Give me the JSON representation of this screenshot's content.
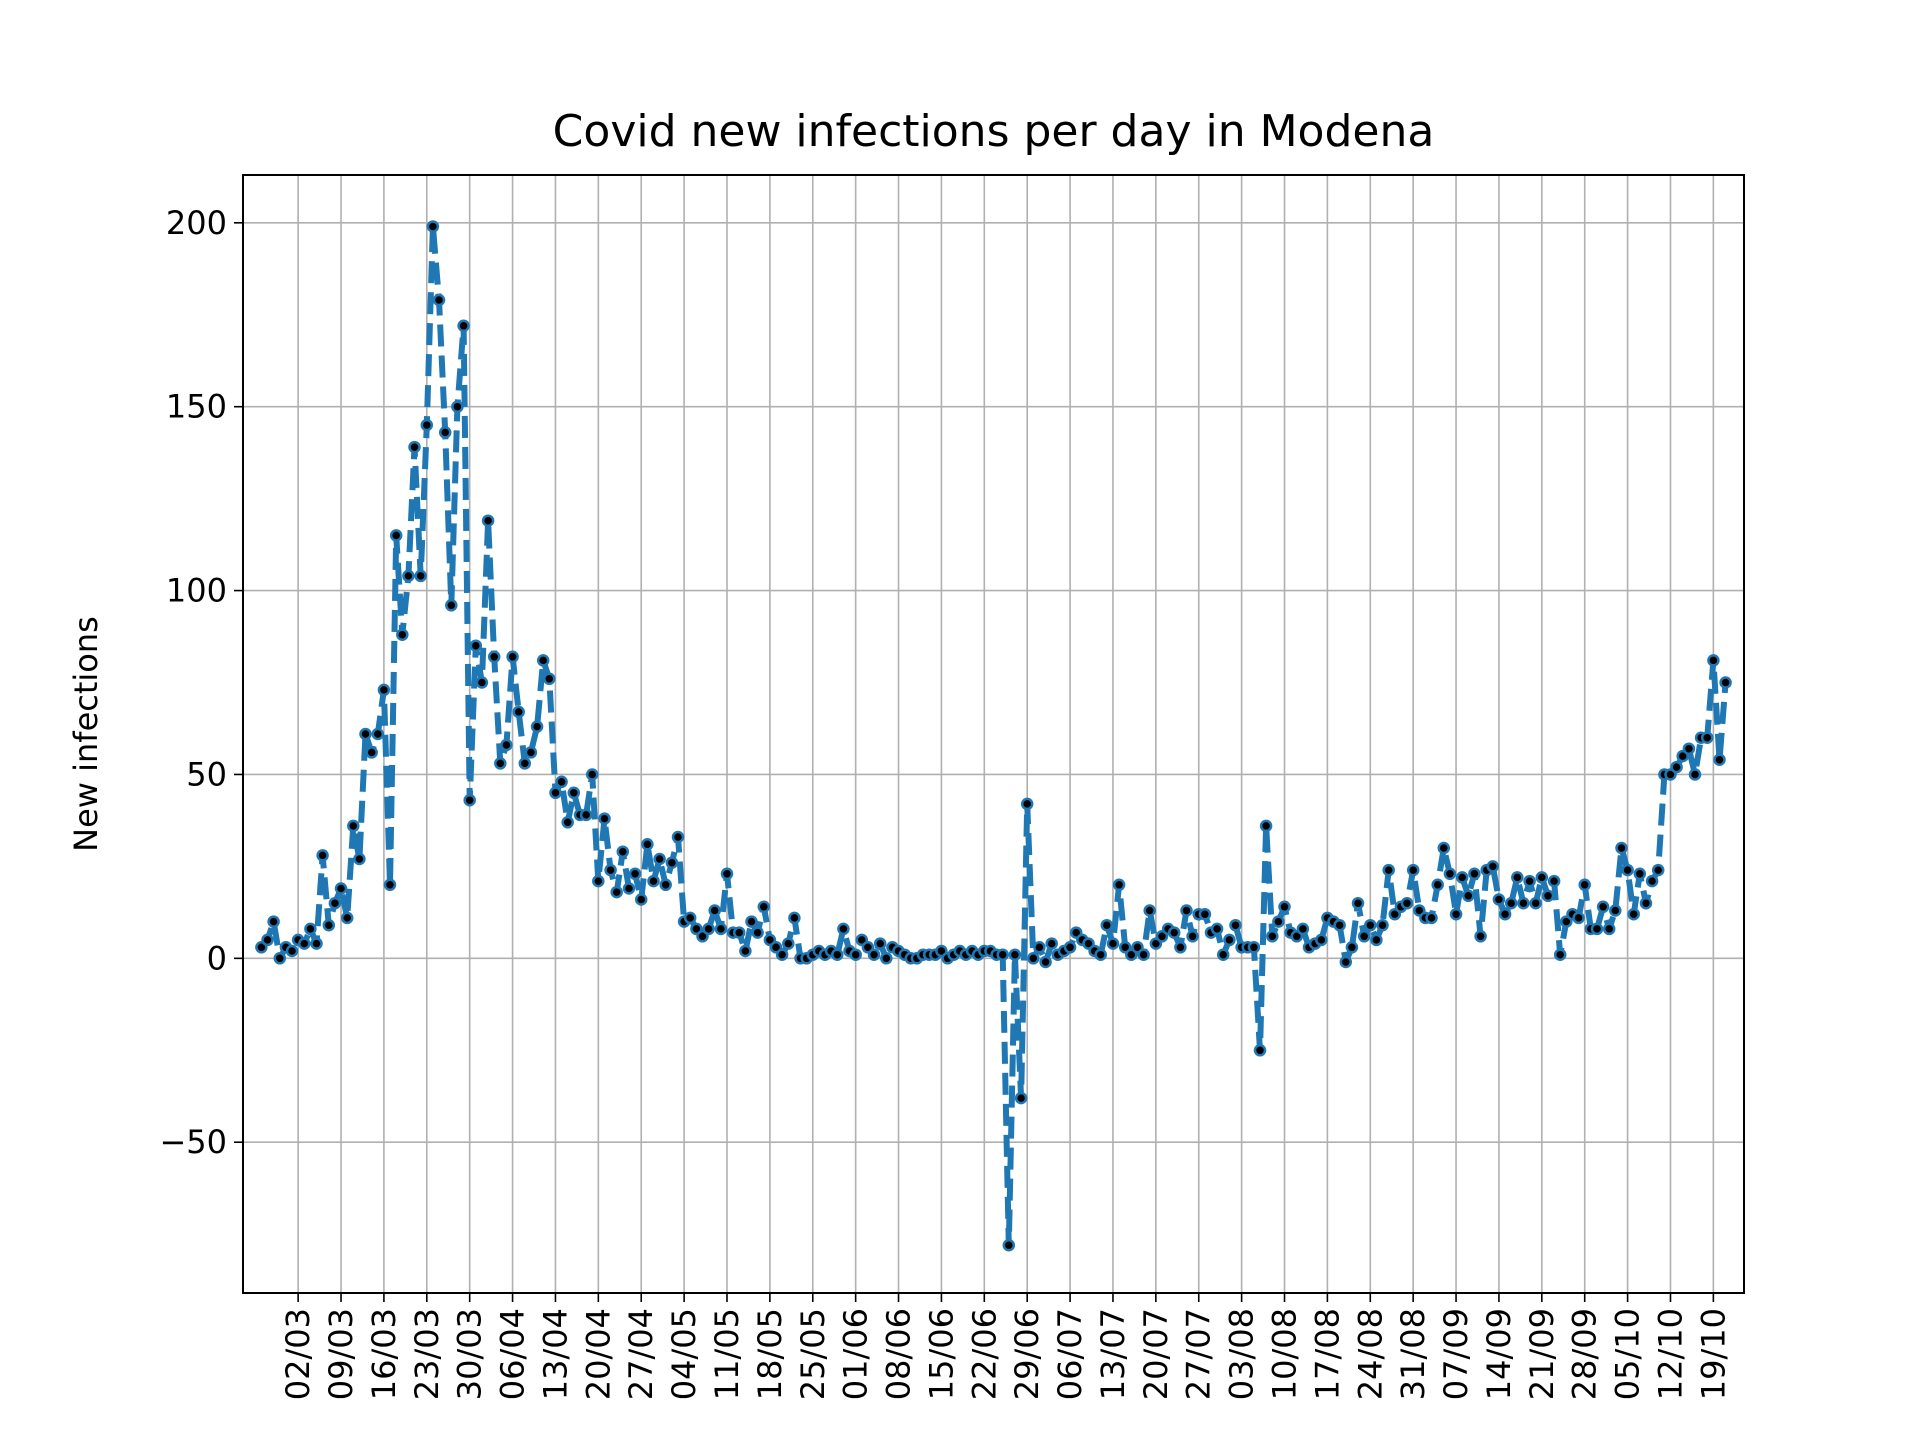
{
  "chart_data": {
    "type": "line",
    "title": "Covid new infections per day in Modena",
    "xlabel": "",
    "ylabel": "New infections",
    "x_start": "2020-02-25",
    "x_tick_labels": [
      "02/03",
      "09/03",
      "16/03",
      "23/03",
      "30/03",
      "06/04",
      "13/04",
      "20/04",
      "27/04",
      "04/05",
      "11/05",
      "18/05",
      "25/05",
      "01/06",
      "08/06",
      "15/06",
      "22/06",
      "29/06",
      "06/07",
      "13/07",
      "20/07",
      "27/07",
      "03/08",
      "10/08",
      "17/08",
      "24/08",
      "31/08",
      "07/09",
      "14/09",
      "21/09",
      "28/09",
      "05/10",
      "12/10",
      "19/10"
    ],
    "y_ticks": [
      -50,
      0,
      50,
      100,
      150,
      200
    ],
    "y_tick_labels": [
      "−50",
      "0",
      "50",
      "100",
      "150",
      "200"
    ],
    "ylim": [
      -91,
      213
    ],
    "grid": true,
    "line_color": "#1f77b4",
    "line_style": "dashed",
    "marker_color": "#000000",
    "series": [
      {
        "values": [
          3,
          5,
          10,
          0,
          3,
          2,
          5,
          4,
          8,
          4,
          28,
          9,
          15,
          19,
          11,
          36,
          27,
          61,
          56,
          61,
          73,
          20,
          115,
          88,
          104,
          139,
          104,
          145,
          199,
          179,
          143,
          96,
          150,
          172,
          43,
          85,
          75,
          119,
          82,
          53,
          58,
          82,
          67,
          53,
          56,
          63,
          81,
          76,
          45,
          48,
          37,
          45,
          39,
          39,
          50,
          21,
          38,
          24,
          18,
          29,
          19,
          23,
          16,
          31,
          21,
          27,
          20,
          26,
          33,
          10,
          11,
          8,
          6,
          8,
          13,
          8,
          23,
          7,
          7,
          2,
          10,
          7,
          14,
          5,
          3,
          1,
          4,
          11,
          0,
          0,
          1,
          2,
          1,
          2,
          1,
          8,
          2,
          1,
          5,
          3,
          1,
          4,
          0,
          3,
          2,
          1,
          0,
          0,
          1,
          1,
          1,
          2,
          0,
          1,
          2,
          1,
          2,
          1,
          2,
          2,
          1,
          1,
          -78,
          1,
          -38,
          42,
          0,
          3,
          -1,
          4,
          1,
          2,
          3,
          7,
          5,
          4,
          2,
          1,
          9,
          4,
          20,
          3,
          1,
          3,
          1,
          13,
          4,
          6,
          8,
          7,
          3,
          13,
          6,
          12,
          12,
          7,
          8,
          1,
          5,
          9,
          3,
          3,
          3,
          -25,
          36,
          6,
          10,
          14,
          7,
          6,
          8,
          3,
          4,
          5,
          11,
          10,
          9,
          -1,
          3,
          15,
          6,
          9,
          5,
          9,
          24,
          12,
          14,
          15,
          24,
          13,
          11,
          11,
          20,
          30,
          23,
          12,
          22,
          17,
          23,
          6,
          24,
          25,
          16,
          12,
          15,
          22,
          15,
          21,
          15,
          22,
          17,
          21,
          1,
          10,
          12,
          11,
          20,
          8,
          8,
          14,
          8,
          13,
          30,
          24,
          12,
          23,
          15,
          21,
          24,
          50,
          50,
          52,
          55,
          57,
          50,
          60,
          60,
          81,
          54,
          75
        ]
      }
    ]
  }
}
